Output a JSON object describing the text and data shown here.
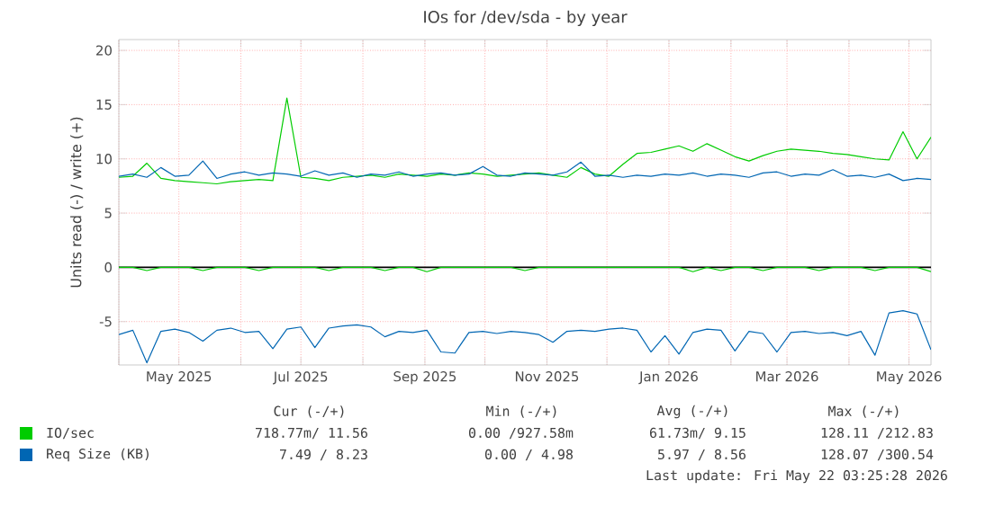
{
  "chart_data": {
    "type": "line",
    "title": "IOs for /dev/sda - by year",
    "ylabel": "Units read (-) / write (+)",
    "x": [
      "2025-04-01",
      "2025-04-08",
      "2025-04-15",
      "2025-04-22",
      "2025-04-29",
      "2025-05-06",
      "2025-05-13",
      "2025-05-20",
      "2025-05-27",
      "2025-06-03",
      "2025-06-10",
      "2025-06-17",
      "2025-06-24",
      "2025-07-01",
      "2025-07-08",
      "2025-07-15",
      "2025-07-22",
      "2025-07-29",
      "2025-08-05",
      "2025-08-12",
      "2025-08-19",
      "2025-08-26",
      "2025-09-02",
      "2025-09-09",
      "2025-09-16",
      "2025-09-23",
      "2025-09-30",
      "2025-10-07",
      "2025-10-14",
      "2025-10-21",
      "2025-10-28",
      "2025-11-04",
      "2025-11-11",
      "2025-11-18",
      "2025-11-25",
      "2025-12-02",
      "2025-12-09",
      "2025-12-16",
      "2025-12-23",
      "2025-12-30",
      "2026-01-06",
      "2026-01-13",
      "2026-01-20",
      "2026-01-27",
      "2026-02-03",
      "2026-02-10",
      "2026-02-17",
      "2026-02-24",
      "2026-03-03",
      "2026-03-10",
      "2026-03-17",
      "2026-03-24",
      "2026-03-31",
      "2026-04-07",
      "2026-04-14",
      "2026-04-21",
      "2026-04-28",
      "2026-05-05",
      "2026-05-12"
    ],
    "series": [
      {
        "name": "IO/sec",
        "color": "#00cc00",
        "values": [
          8.3,
          8.4,
          9.6,
          8.2,
          8.0,
          7.9,
          7.8,
          7.7,
          7.9,
          8.0,
          8.1,
          8.0,
          15.6,
          8.3,
          8.2,
          8.0,
          8.3,
          8.4,
          8.5,
          8.3,
          8.6,
          8.5,
          8.4,
          8.6,
          8.5,
          8.7,
          8.6,
          8.4,
          8.5,
          8.6,
          8.7,
          8.5,
          8.3,
          9.2,
          8.6,
          8.4,
          9.5,
          10.5,
          10.6,
          10.9,
          11.2,
          10.7,
          11.4,
          10.8,
          10.2,
          9.8,
          10.3,
          10.7,
          10.9,
          10.8,
          10.7,
          10.5,
          10.4,
          10.2,
          10.0,
          9.9,
          12.5,
          10.0,
          12.0
        ]
      },
      {
        "color": "#00cc00",
        "values": [
          0,
          0,
          -0.3,
          0,
          0,
          0,
          -0.3,
          0,
          0,
          0,
          -0.3,
          0,
          0,
          0,
          0,
          -0.3,
          0,
          0,
          0,
          -0.3,
          0,
          0,
          -0.4,
          0,
          0,
          0,
          0,
          0,
          0,
          -0.3,
          0,
          0,
          0,
          0,
          0,
          0,
          0,
          0,
          0,
          0,
          0,
          -0.4,
          0,
          -0.3,
          0,
          0,
          -0.3,
          0,
          0,
          0,
          -0.3,
          0,
          0,
          0,
          -0.3,
          0,
          0,
          0,
          -0.4
        ]
      },
      {
        "name": "Req Size (KB)",
        "color": "#0066b3",
        "values": [
          8.4,
          8.6,
          8.3,
          9.2,
          8.4,
          8.5,
          9.8,
          8.2,
          8.6,
          8.8,
          8.5,
          8.7,
          8.6,
          8.4,
          8.9,
          8.5,
          8.7,
          8.3,
          8.6,
          8.5,
          8.8,
          8.4,
          8.6,
          8.7,
          8.5,
          8.6,
          9.3,
          8.5,
          8.4,
          8.7,
          8.6,
          8.5,
          8.8,
          9.7,
          8.4,
          8.5,
          8.3,
          8.5,
          8.4,
          8.6,
          8.5,
          8.7,
          8.4,
          8.6,
          8.5,
          8.3,
          8.7,
          8.8,
          8.4,
          8.6,
          8.5,
          9.0,
          8.4,
          8.5,
          8.3,
          8.6,
          8.0,
          8.2,
          8.1
        ]
      },
      {
        "color": "#0066b3",
        "values": [
          -6.2,
          -5.8,
          -8.8,
          -5.9,
          -5.7,
          -6.0,
          -6.8,
          -5.8,
          -5.6,
          -6.0,
          -5.9,
          -7.5,
          -5.7,
          -5.5,
          -7.4,
          -5.6,
          -5.4,
          -5.3,
          -5.5,
          -6.4,
          -5.9,
          -6.0,
          -5.8,
          -7.8,
          -7.9,
          -6.0,
          -5.9,
          -6.1,
          -5.9,
          -6.0,
          -6.2,
          -6.9,
          -5.9,
          -5.8,
          -5.9,
          -5.7,
          -5.6,
          -5.8,
          -7.8,
          -6.3,
          -8.0,
          -6.0,
          -5.7,
          -5.8,
          -7.7,
          -5.9,
          -6.1,
          -7.8,
          -6.0,
          -5.9,
          -6.1,
          -6.0,
          -6.3,
          -5.9,
          -8.1,
          -4.2,
          -4.0,
          -4.3,
          -7.6
        ]
      }
    ],
    "xlim": [
      "2025-04-01",
      "2026-05-12"
    ],
    "xticks": [
      {
        "value": "2025-04-01",
        "label": null
      },
      {
        "value": "2025-05-01",
        "label": "May 2025"
      },
      {
        "value": "2025-06-01",
        "label": null
      },
      {
        "value": "2025-07-01",
        "label": "Jul 2025"
      },
      {
        "value": "2025-08-01",
        "label": null
      },
      {
        "value": "2025-09-01",
        "label": "Sep 2025"
      },
      {
        "value": "2025-10-01",
        "label": null
      },
      {
        "value": "2025-11-01",
        "label": "Nov 2025"
      },
      {
        "value": "2025-12-01",
        "label": null
      },
      {
        "value": "2026-01-01",
        "label": "Jan 2026"
      },
      {
        "value": "2026-02-01",
        "label": null
      },
      {
        "value": "2026-03-01",
        "label": "Mar 2026"
      },
      {
        "value": "2026-04-01",
        "label": null
      },
      {
        "value": "2026-05-01",
        "label": "May 2026"
      }
    ],
    "ylim": [
      -9,
      21
    ],
    "yticks": [
      -5,
      0,
      5,
      10,
      15,
      20
    ],
    "ref_lines": [
      {
        "axis": "y",
        "value": 0,
        "color": "#000000"
      }
    ],
    "grid": true,
    "legend": "bottom",
    "marker": "none",
    "line_style": "solid",
    "annotations": [
      "Cur (-/+)",
      "Min (-/+)",
      "Avg (-/+)",
      "Max (-/+)",
      "718.77m/ 11.56",
      "0.00 /927.58m",
      "61.73m/  9.15",
      "128.11 /212.83",
      "7.49 /  8.23",
      "0.00 /  4.98",
      "5.97 /  8.56",
      "128.07 /300.54",
      "Last update: Fri May 22 03:25:28 2026"
    ]
  }
}
